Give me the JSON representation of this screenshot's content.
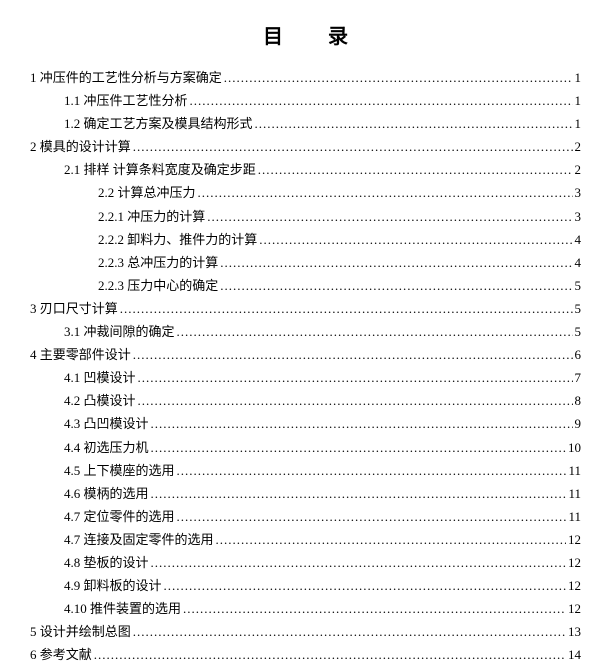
{
  "title": "目 录",
  "entries": [
    {
      "level": 0,
      "text": "1 冲压件的工艺性分析与方案确定",
      "page": "1"
    },
    {
      "level": 1,
      "text": "1.1 冲压件工艺性分析",
      "page": "1"
    },
    {
      "level": 1,
      "text": "1.2 确定工艺方案及模具结构形式",
      "page": "1"
    },
    {
      "level": 0,
      "text": "2 模具的设计计算",
      "page": "2"
    },
    {
      "level": 1,
      "text": "2.1 排样 计算条料宽度及确定步距",
      "page": "2"
    },
    {
      "level": 2,
      "text": "2.2 计算总冲压力",
      "page": "3"
    },
    {
      "level": 2,
      "text": "2.2.1 冲压力的计算",
      "page": "3"
    },
    {
      "level": 2,
      "text": "2.2.2 卸料力、推件力的计算",
      "page": "4"
    },
    {
      "level": 2,
      "text": "2.2.3 总冲压力的计算",
      "page": "4"
    },
    {
      "level": 2,
      "text": "2.2.3 压力中心的确定",
      "page": "5"
    },
    {
      "level": 0,
      "text": "3 刃口尺寸计算",
      "page": "5"
    },
    {
      "level": 1,
      "text": "3.1 冲裁间隙的确定",
      "page": "5"
    },
    {
      "level": 0,
      "text": "4 主要零部件设计",
      "page": "6"
    },
    {
      "level": 1,
      "text": "4.1 凹模设计",
      "page": "7"
    },
    {
      "level": 1,
      "text": "4.2 凸模设计",
      "page": "8"
    },
    {
      "level": 1,
      "text": "4.3 凸凹模设计",
      "page": "9"
    },
    {
      "level": 1,
      "text": "4.4 初选压力机",
      "page": "10"
    },
    {
      "level": 1,
      "text": "4.5 上下模座的选用",
      "page": "11"
    },
    {
      "level": 1,
      "text": "4.6 模柄的选用",
      "page": "11"
    },
    {
      "level": 1,
      "text": "4.7 定位零件的选用",
      "page": "11"
    },
    {
      "level": 1,
      "text": "4.7 连接及固定零件的选用",
      "page": "12"
    },
    {
      "level": 1,
      "text": "4.8 垫板的设计",
      "page": "12"
    },
    {
      "level": 1,
      "text": "4.9 卸料板的设计",
      "page": "12"
    },
    {
      "level": 1,
      "text": "4.10 推件装置的选用",
      "page": "12"
    },
    {
      "level": 0,
      "text": "5 设计并绘制总图",
      "page": "13"
    },
    {
      "level": 0,
      "text": "6 参考文献",
      "page": "14"
    }
  ]
}
